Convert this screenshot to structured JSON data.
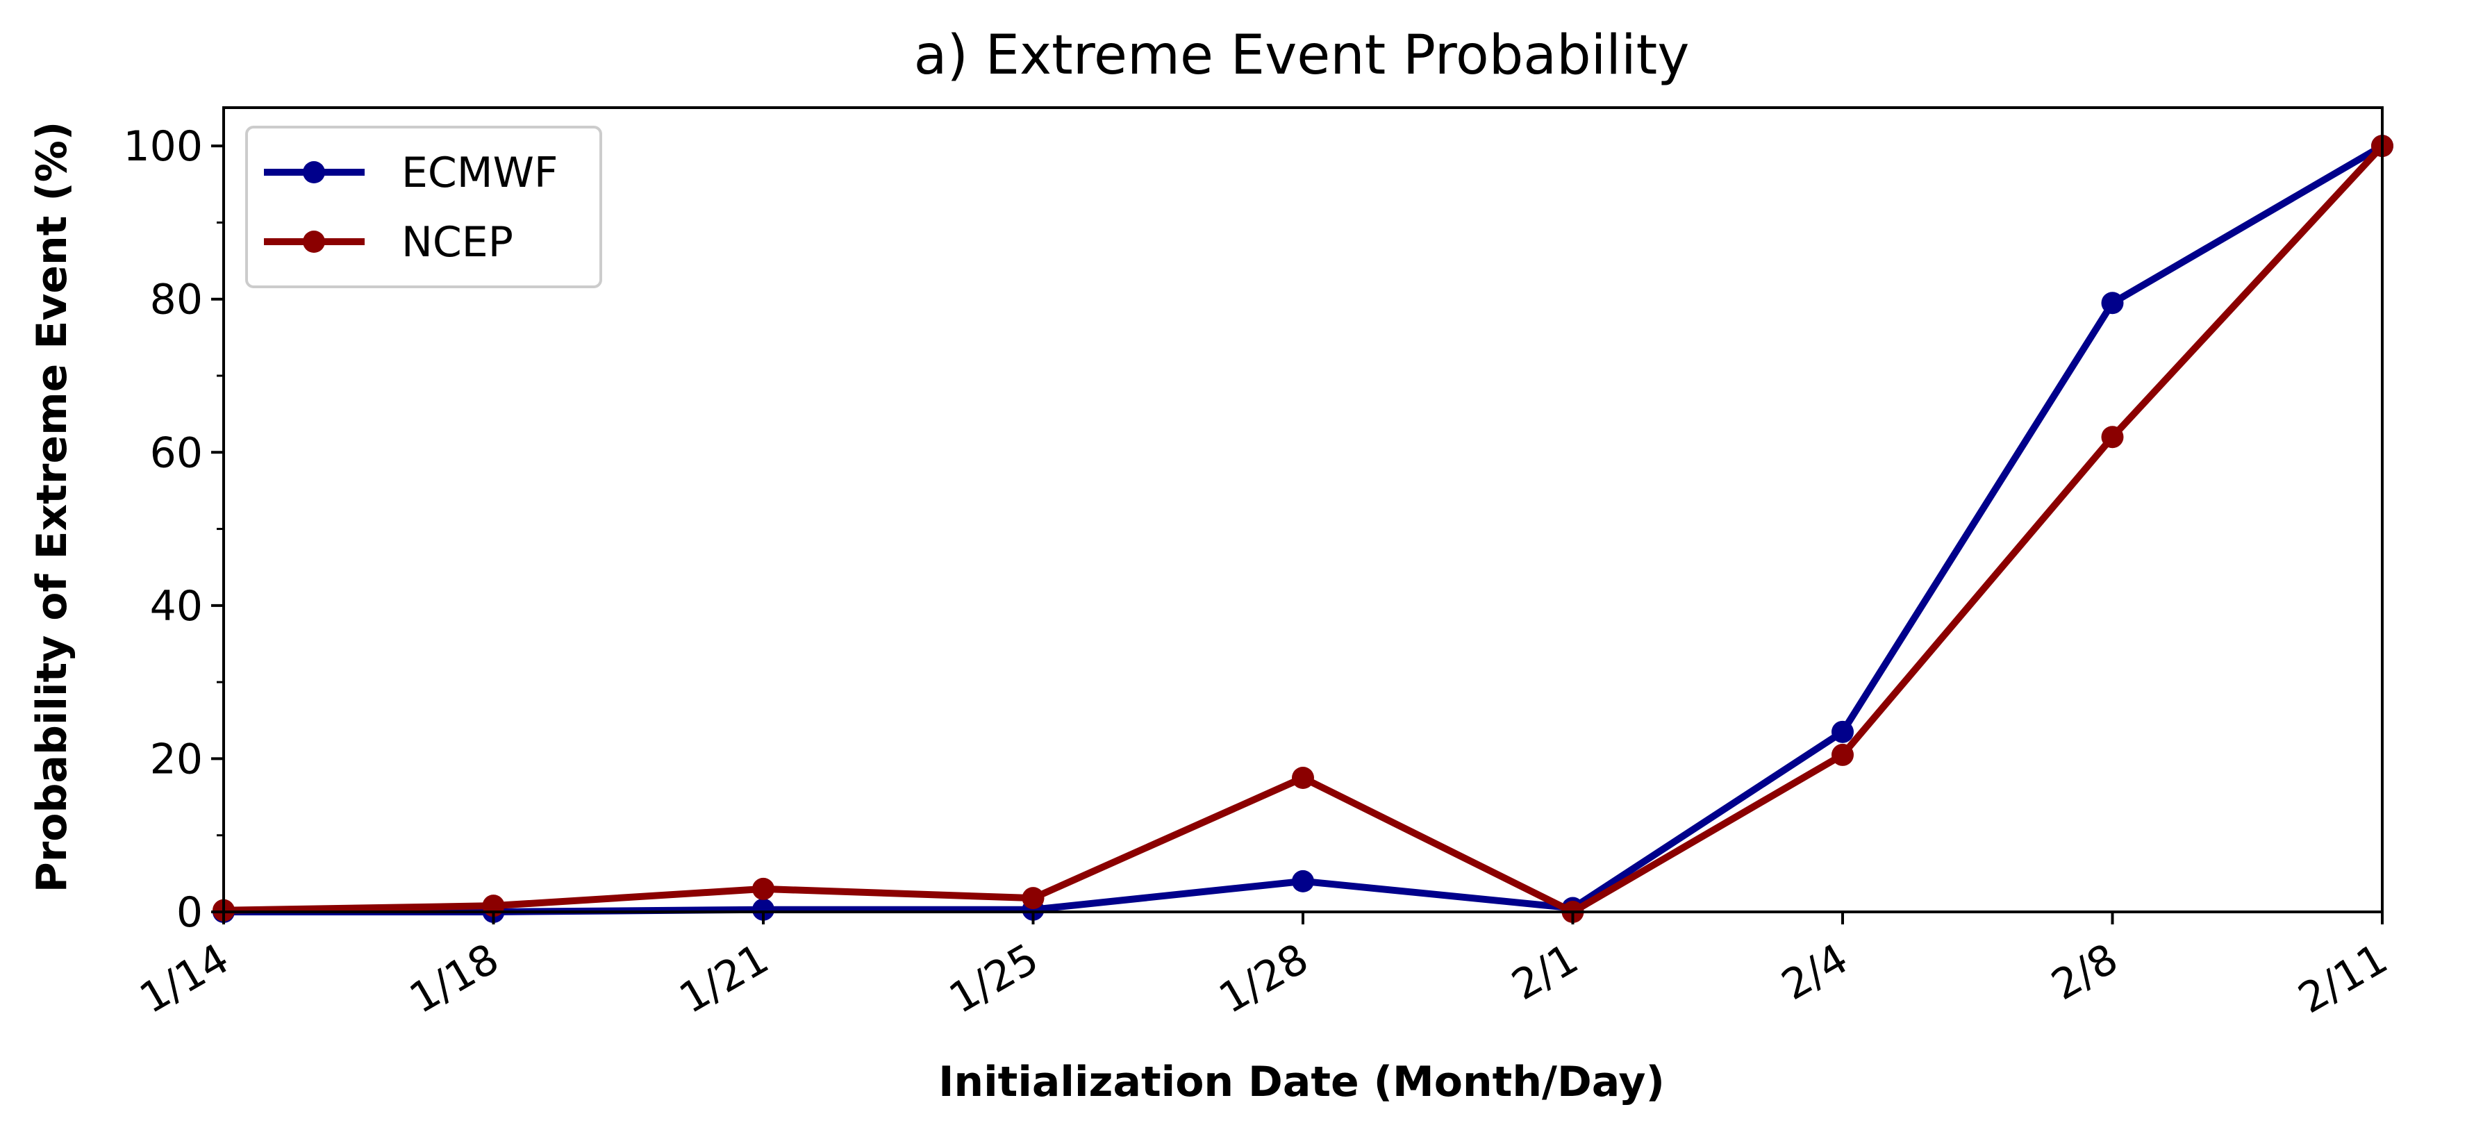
{
  "chart_data": {
    "type": "line",
    "title": "a) Extreme Event Probability",
    "xlabel": "Initialization Date (Month/Day)",
    "ylabel": "Probability of Extreme Event (%)",
    "categories": [
      "1/14",
      "1/18",
      "1/21",
      "1/25",
      "1/28",
      "2/1",
      "2/4",
      "2/8",
      "2/11"
    ],
    "y_ticks": [
      "0",
      "20",
      "40",
      "60",
      "80",
      "100"
    ],
    "ylim": [
      0,
      105
    ],
    "grid": false,
    "legend_position": "top-left",
    "series": [
      {
        "name": "ECMWF",
        "color": "#00008b",
        "values": [
          0,
          0,
          0.3,
          0.3,
          4,
          0.5,
          23.5,
          79.5,
          100
        ]
      },
      {
        "name": "NCEP",
        "color": "#8b0000",
        "values": [
          0.2,
          0.8,
          3,
          1.8,
          17.5,
          0,
          20.5,
          62,
          100
        ]
      }
    ]
  }
}
